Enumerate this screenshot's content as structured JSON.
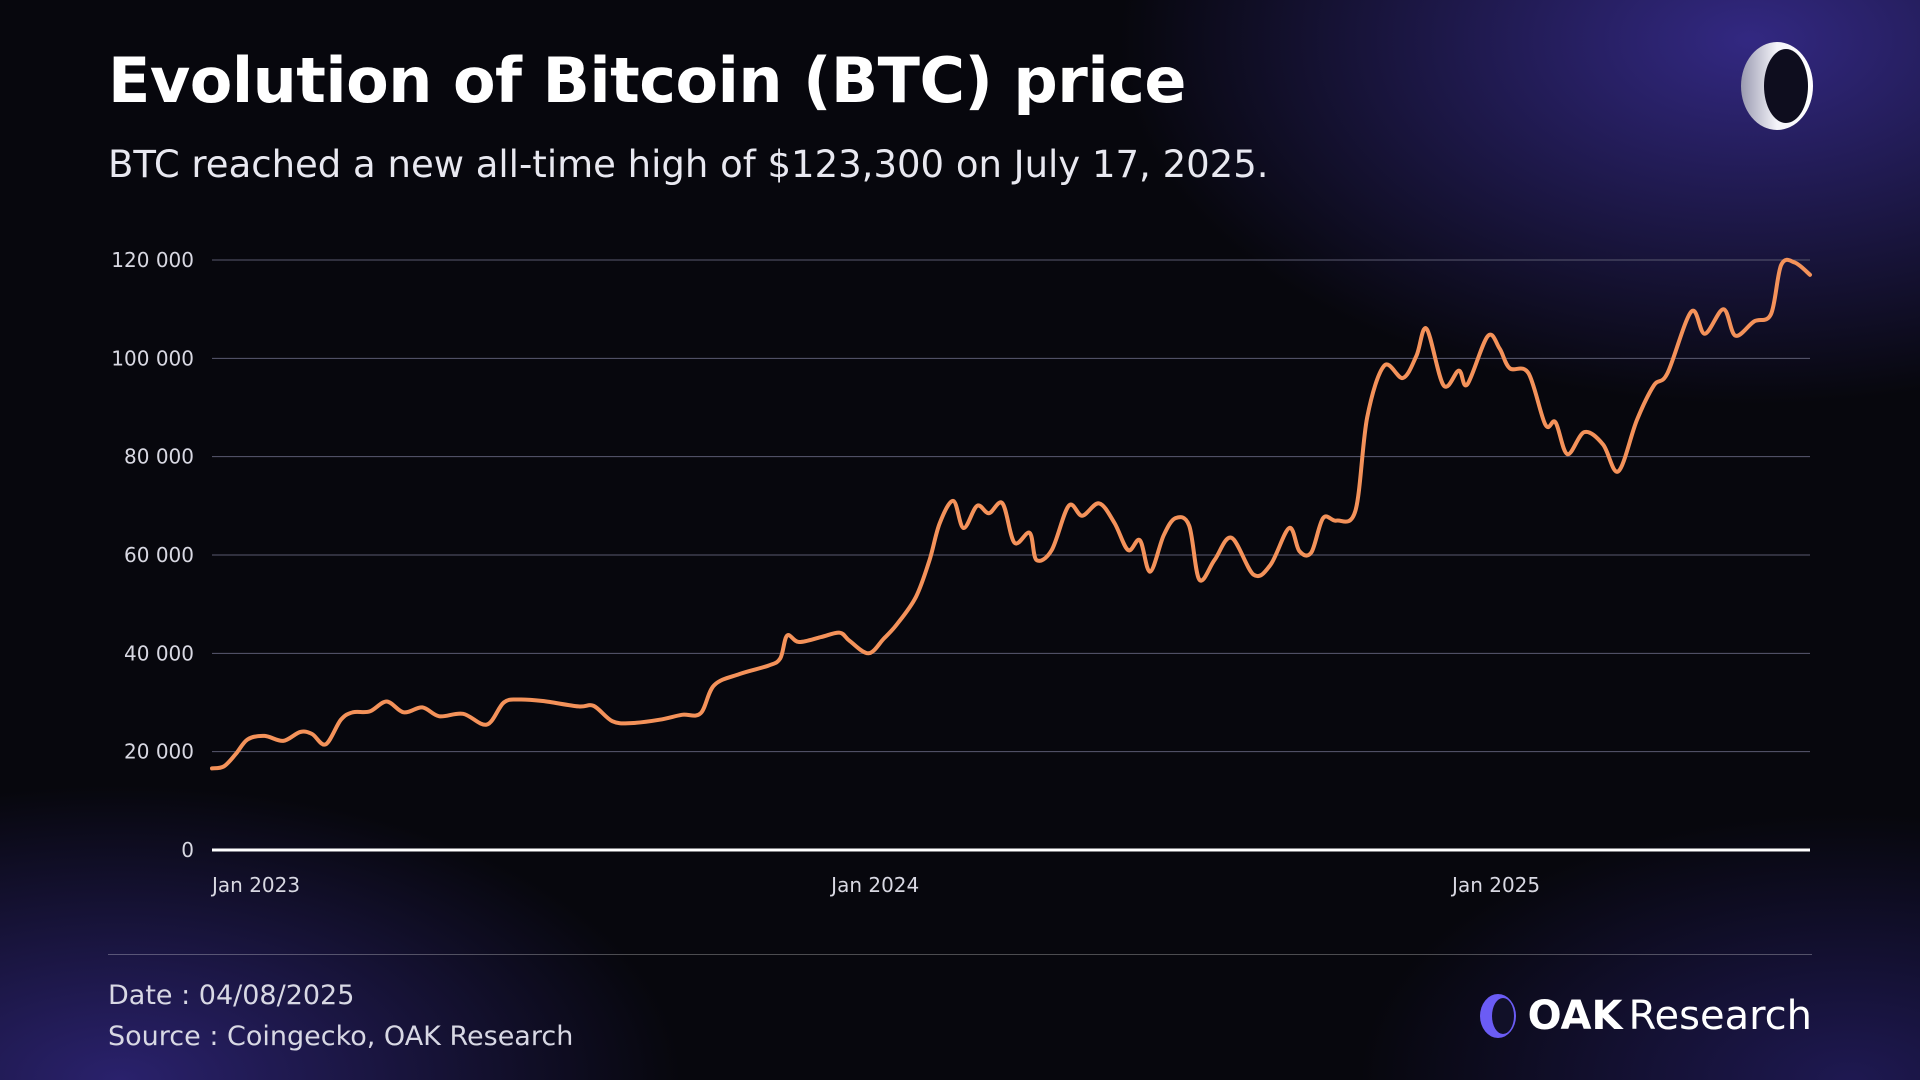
{
  "header": {
    "title": "Evolution of Bitcoin (BTC) price",
    "subtitle": "BTC reached a new all-time high of $123,300 on July 17, 2025."
  },
  "footer": {
    "date": "Date : 04/08/2025",
    "source": "Source : Coingecko, OAK Research",
    "brand_strong": "OAK",
    "brand_light": "Research"
  },
  "colors": {
    "line": "#f4925a",
    "grid": "#5a5a70",
    "baseline": "#ffffff",
    "logo": "#6b5cf5"
  },
  "chart_data": {
    "type": "line",
    "title": "Evolution of Bitcoin (BTC) price",
    "subtitle": "BTC reached a new all-time high of $123,300 on July 17, 2025.",
    "xlabel": "",
    "ylabel": "",
    "ylim": [
      0,
      120000
    ],
    "xlim": [
      "2023-01-01",
      "2025-07-31"
    ],
    "yticks": [
      {
        "value": 0,
        "label": "0"
      },
      {
        "value": 20000,
        "label": "20 000"
      },
      {
        "value": 40000,
        "label": "40 000"
      },
      {
        "value": 60000,
        "label": "60 000"
      },
      {
        "value": 80000,
        "label": "80 000"
      },
      {
        "value": 100000,
        "label": "100 000"
      },
      {
        "value": 120000,
        "label": "120 000"
      }
    ],
    "xticks": [
      {
        "value": "2023-01-01",
        "label": "Jan 2023"
      },
      {
        "value": "2024-01-01",
        "label": "Jan 2024"
      },
      {
        "value": "2025-01-01",
        "label": "Jan 2025"
      }
    ],
    "grid": true,
    "series": [
      {
        "color": "#f4925a",
        "points": [
          [
            "2023-01-01",
            16600
          ],
          [
            "2023-01-08",
            17000
          ],
          [
            "2023-01-15",
            19500
          ],
          [
            "2023-01-22",
            22500
          ],
          [
            "2023-02-01",
            23200
          ],
          [
            "2023-02-12",
            22200
          ],
          [
            "2023-02-22",
            24000
          ],
          [
            "2023-03-01",
            23600
          ],
          [
            "2023-03-09",
            21500
          ],
          [
            "2023-03-18",
            26500
          ],
          [
            "2023-03-25",
            28000
          ],
          [
            "2023-04-04",
            28200
          ],
          [
            "2023-04-14",
            30200
          ],
          [
            "2023-04-24",
            28000
          ],
          [
            "2023-05-05",
            29000
          ],
          [
            "2023-05-15",
            27200
          ],
          [
            "2023-05-29",
            27700
          ],
          [
            "2023-06-12",
            25500
          ],
          [
            "2023-06-22",
            30000
          ],
          [
            "2023-07-01",
            30600
          ],
          [
            "2023-07-15",
            30300
          ],
          [
            "2023-08-05",
            29200
          ],
          [
            "2023-08-14",
            29300
          ],
          [
            "2023-08-25",
            26200
          ],
          [
            "2023-09-05",
            25800
          ],
          [
            "2023-09-22",
            26500
          ],
          [
            "2023-10-05",
            27500
          ],
          [
            "2023-10-16",
            27800
          ],
          [
            "2023-10-24",
            33500
          ],
          [
            "2023-11-08",
            35800
          ],
          [
            "2023-11-25",
            37500
          ],
          [
            "2023-12-02",
            39000
          ],
          [
            "2023-12-06",
            43600
          ],
          [
            "2023-12-13",
            42300
          ],
          [
            "2023-12-26",
            43300
          ],
          [
            "2024-01-06",
            44200
          ],
          [
            "2024-01-12",
            42500
          ],
          [
            "2024-01-23",
            40000
          ],
          [
            "2024-02-01",
            43000
          ],
          [
            "2024-02-09",
            46000
          ],
          [
            "2024-02-20",
            51500
          ],
          [
            "2024-02-28",
            59000
          ],
          [
            "2024-03-05",
            66500
          ],
          [
            "2024-03-13",
            71000
          ],
          [
            "2024-03-19",
            65500
          ],
          [
            "2024-03-27",
            70000
          ],
          [
            "2024-04-03",
            68500
          ],
          [
            "2024-04-11",
            70500
          ],
          [
            "2024-04-18",
            62500
          ],
          [
            "2024-04-27",
            64500
          ],
          [
            "2024-05-01",
            59000
          ],
          [
            "2024-05-10",
            61000
          ],
          [
            "2024-05-20",
            70000
          ],
          [
            "2024-05-28",
            68000
          ],
          [
            "2024-06-07",
            70500
          ],
          [
            "2024-06-16",
            66500
          ],
          [
            "2024-06-24",
            61000
          ],
          [
            "2024-07-01",
            63000
          ],
          [
            "2024-07-07",
            56600
          ],
          [
            "2024-07-15",
            64000
          ],
          [
            "2024-07-22",
            67500
          ],
          [
            "2024-07-30",
            66000
          ],
          [
            "2024-08-05",
            55000
          ],
          [
            "2024-08-14",
            59000
          ],
          [
            "2024-08-24",
            63500
          ],
          [
            "2024-09-06",
            56000
          ],
          [
            "2024-09-16",
            58000
          ],
          [
            "2024-09-27",
            65500
          ],
          [
            "2024-10-03",
            60800
          ],
          [
            "2024-10-10",
            60500
          ],
          [
            "2024-10-17",
            67500
          ],
          [
            "2024-10-25",
            67000
          ],
          [
            "2024-11-05",
            69000
          ],
          [
            "2024-11-12",
            88000
          ],
          [
            "2024-11-22",
            98500
          ],
          [
            "2024-12-03",
            96000
          ],
          [
            "2024-12-11",
            100500
          ],
          [
            "2024-12-17",
            106000
          ],
          [
            "2024-12-27",
            94500
          ],
          [
            "2025-01-05",
            97500
          ],
          [
            "2025-01-10",
            94700
          ],
          [
            "2025-01-22",
            104500
          ],
          [
            "2025-01-29",
            102000
          ],
          [
            "2025-02-04",
            98000
          ],
          [
            "2025-02-15",
            97000
          ],
          [
            "2025-02-25",
            86500
          ],
          [
            "2025-03-03",
            87000
          ],
          [
            "2025-03-10",
            80500
          ],
          [
            "2025-03-20",
            85000
          ],
          [
            "2025-03-31",
            82500
          ],
          [
            "2025-04-09",
            77000
          ],
          [
            "2025-04-20",
            87500
          ],
          [
            "2025-04-30",
            94500
          ],
          [
            "2025-05-08",
            97000
          ],
          [
            "2025-05-22",
            109500
          ],
          [
            "2025-05-30",
            105000
          ],
          [
            "2025-06-10",
            110000
          ],
          [
            "2025-06-17",
            104600
          ],
          [
            "2025-06-28",
            107500
          ],
          [
            "2025-07-08",
            109000
          ],
          [
            "2025-07-14",
            119000
          ],
          [
            "2025-07-22",
            119500
          ],
          [
            "2025-07-31",
            117000
          ]
        ]
      }
    ]
  }
}
